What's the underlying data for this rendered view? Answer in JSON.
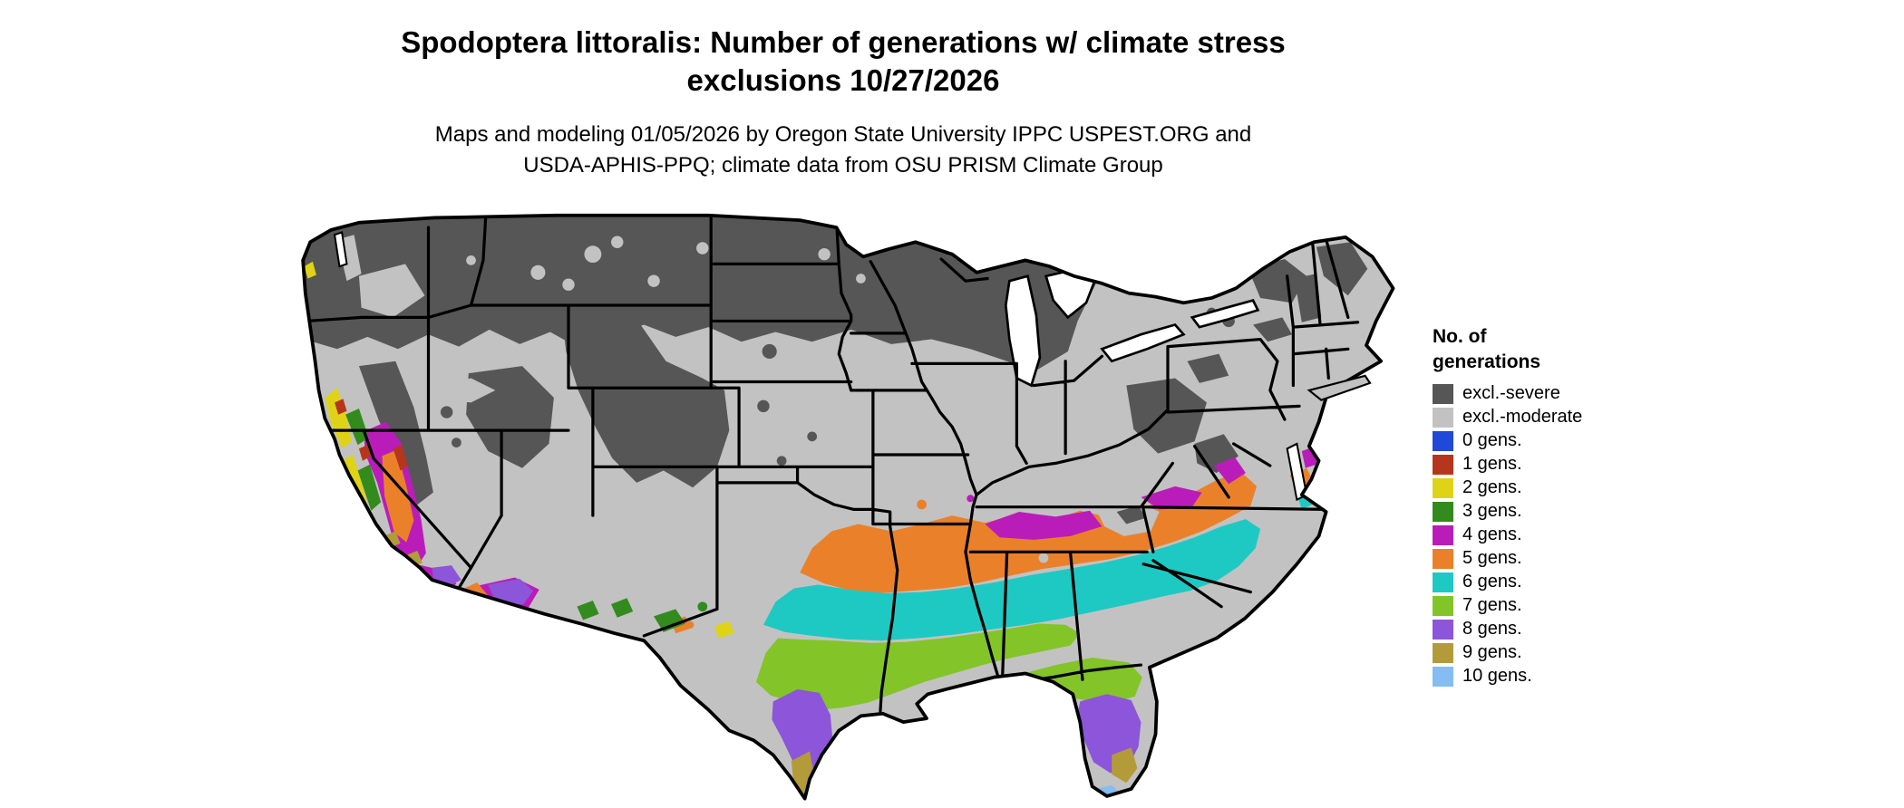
{
  "title": {
    "line1": "Spodoptera littoralis: Number of generations w/ climate stress",
    "line2": "exclusions 10/27/2026"
  },
  "subtitle": {
    "line1": "Maps and modeling 01/05/2026 by Oregon State University IPPC USPEST.ORG and",
    "line2": "USDA-APHIS-PPQ; climate data from OSU PRISM Climate Group"
  },
  "legend": {
    "title_line1": "No. of",
    "title_line2": "generations",
    "items": [
      {
        "label": "excl.-severe",
        "color_key": "excl_severe"
      },
      {
        "label": "excl.-moderate",
        "color_key": "excl_moderate"
      },
      {
        "label": "0 gens.",
        "color_key": "gens0"
      },
      {
        "label": "1 gens.",
        "color_key": "gens1"
      },
      {
        "label": "2 gens.",
        "color_key": "gens2"
      },
      {
        "label": "3 gens.",
        "color_key": "gens3"
      },
      {
        "label": "4 gens.",
        "color_key": "gens4"
      },
      {
        "label": "5 gens.",
        "color_key": "gens5"
      },
      {
        "label": "6 gens.",
        "color_key": "gens6"
      },
      {
        "label": "7 gens.",
        "color_key": "gens7"
      },
      {
        "label": "8 gens.",
        "color_key": "gens8"
      },
      {
        "label": "9 gens.",
        "color_key": "gens9"
      },
      {
        "label": "10 gens.",
        "color_key": "gens10"
      }
    ]
  },
  "colors": {
    "excl_severe": "#565656",
    "excl_moderate": "#c2c2c2",
    "gens0": "#2148d9",
    "gens1": "#b5361c",
    "gens2": "#ded317",
    "gens3": "#338a1d",
    "gens4": "#ba1cba",
    "gens5": "#ea812a",
    "gens6": "#1fc9c3",
    "gens7": "#83c428",
    "gens8": "#8d55d9",
    "gens9": "#b39b39",
    "gens10": "#85bdf3",
    "state_border": "#000000",
    "water": "#ffffff"
  },
  "map": {
    "name": "Continental United States choropleth of modeled generations",
    "regions_summary": [
      {
        "area": "Northern tier and mountain west",
        "class": "excl.-severe"
      },
      {
        "area": "Central plains, Midwest, Northeast piedmont",
        "class": "excl.-moderate"
      },
      {
        "area": "Band from Oklahoma through Tennessee/Kentucky to Virginia/North Carolina",
        "class": "5 gens."
      },
      {
        "area": "Patches along Kentucky/Tennessee and coastal Virginia",
        "class": "4 gens."
      },
      {
        "area": "Central Texas through Gulf states to Carolina coast",
        "class": "6 gens."
      },
      {
        "area": "Gulf coast of Texas/Louisiana and northern Florida",
        "class": "7 gens."
      },
      {
        "area": "South Texas, central Florida, southern Arizona desert",
        "class": "8 gens."
      },
      {
        "area": "Southern tip of Texas and south Florida",
        "class": "9 gens."
      },
      {
        "area": "Florida Keys",
        "class": "10 gens."
      },
      {
        "area": "California Central Valley ring and southern California coast",
        "class": "4-5 gens. with 1-3 gens. in coast ranges"
      }
    ]
  }
}
